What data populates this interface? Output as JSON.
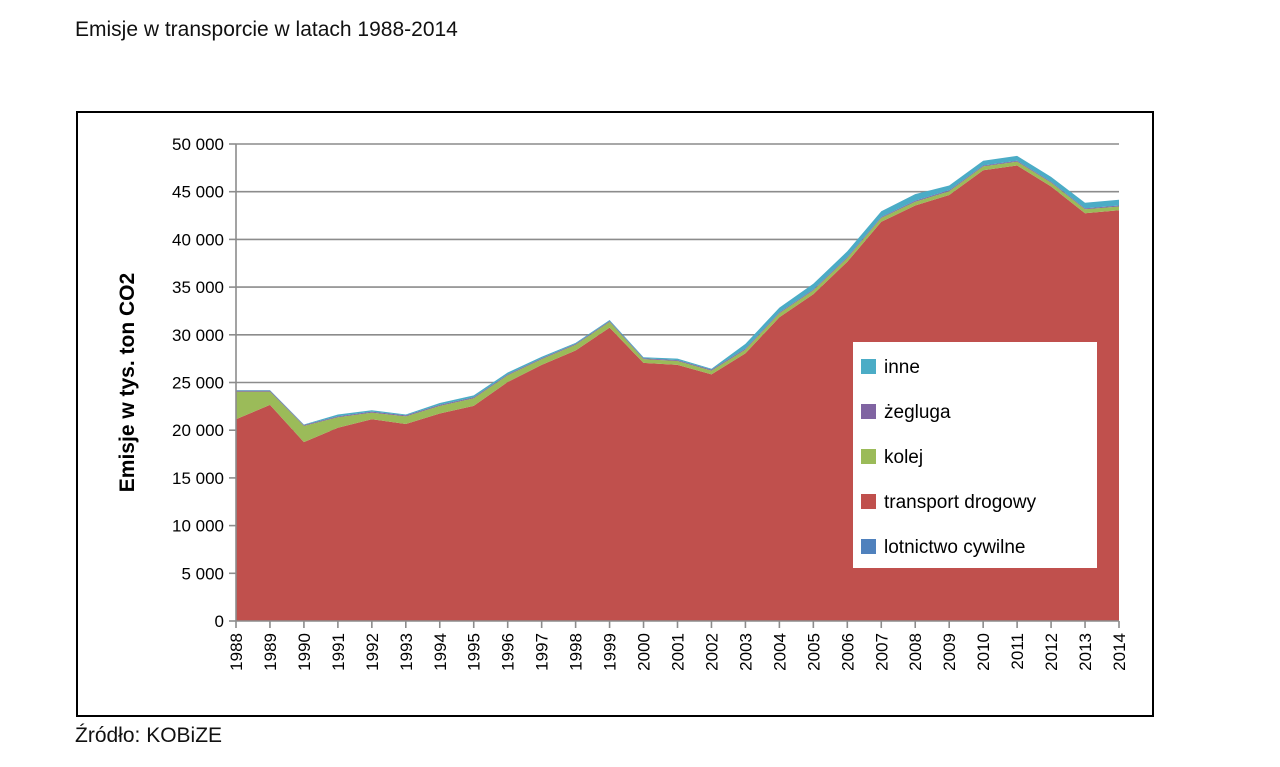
{
  "page_title": "Emisje w transporcie w latach 1988-2014",
  "source_note": "Źródło: KOBiZE",
  "chart_data": {
    "type": "area",
    "stacked": true,
    "title": "",
    "xlabel": "",
    "ylabel": "Emisje w tys. ton CO2",
    "ylim": [
      0,
      50000
    ],
    "yticks": [
      0,
      5000,
      10000,
      15000,
      20000,
      25000,
      30000,
      35000,
      40000,
      45000,
      50000
    ],
    "ytick_labels": [
      "0",
      "5 000",
      "10 000",
      "15 000",
      "20 000",
      "25 000",
      "30 000",
      "35 000",
      "40 000",
      "45 000",
      "50 000"
    ],
    "grid": true,
    "legend_position": "right",
    "categories": [
      "1988",
      "1989",
      "1990",
      "1991",
      "1992",
      "1993",
      "1994",
      "1995",
      "1996",
      "1997",
      "1998",
      "1999",
      "2000",
      "2001",
      "2002",
      "2003",
      "2004",
      "2005",
      "2006",
      "2007",
      "2008",
      "2009",
      "2010",
      "2011",
      "2012",
      "2013",
      "2014"
    ],
    "series": [
      {
        "name": "lotnictwo cywilne",
        "color": "#4F81BD",
        "values": [
          50,
          50,
          50,
          50,
          50,
          50,
          50,
          50,
          50,
          50,
          50,
          50,
          50,
          50,
          50,
          50,
          50,
          50,
          50,
          50,
          50,
          50,
          50,
          50,
          50,
          50,
          50
        ]
      },
      {
        "name": "transport drogowy",
        "color": "#C0504D",
        "values": [
          21100,
          22600,
          18700,
          20200,
          21100,
          20600,
          21700,
          22500,
          25000,
          26800,
          28300,
          30700,
          27000,
          26800,
          25800,
          28000,
          31800,
          34200,
          37600,
          41800,
          43500,
          44600,
          47200,
          47700,
          45500,
          42700,
          43000
        ]
      },
      {
        "name": "kolej",
        "color": "#9BBB59",
        "values": [
          2900,
          1400,
          1700,
          1100,
          700,
          800,
          800,
          800,
          700,
          600,
          600,
          600,
          400,
          400,
          400,
          400,
          400,
          400,
          400,
          400,
          400,
          400,
          400,
          400,
          400,
          400,
          400
        ]
      },
      {
        "name": "żegluga",
        "color": "#8064A2",
        "values": [
          100,
          100,
          100,
          100,
          100,
          100,
          100,
          100,
          100,
          100,
          100,
          100,
          100,
          100,
          100,
          100,
          100,
          100,
          100,
          100,
          100,
          100,
          100,
          100,
          100,
          100,
          100
        ]
      },
      {
        "name": "inne",
        "color": "#4BACC6",
        "values": [
          50,
          50,
          50,
          200,
          150,
          100,
          200,
          200,
          200,
          150,
          100,
          100,
          100,
          150,
          100,
          500,
          500,
          600,
          600,
          600,
          700,
          500,
          500,
          500,
          500,
          600,
          600
        ]
      }
    ]
  }
}
